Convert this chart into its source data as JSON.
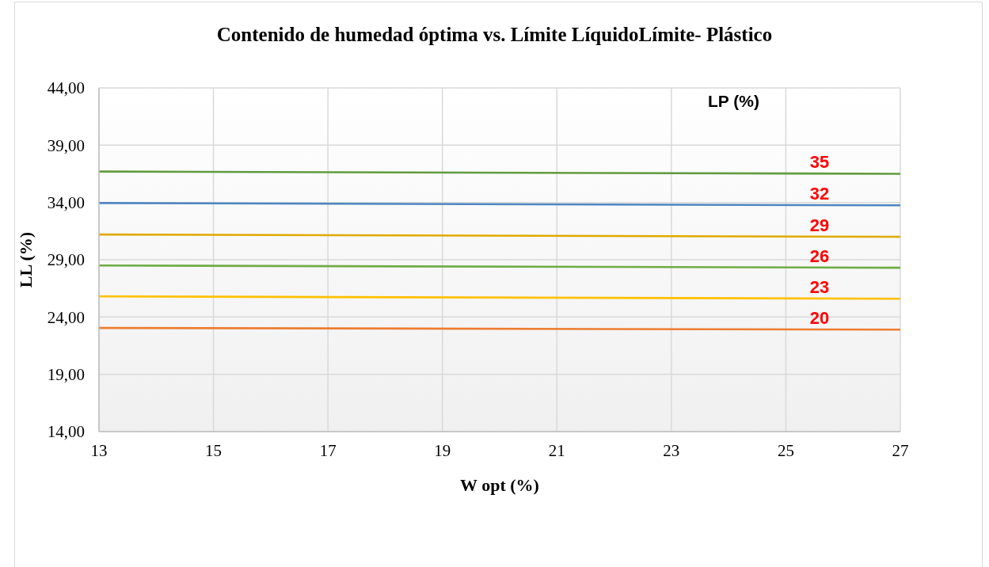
{
  "chart_data": {
    "type": "line",
    "title": "Contenido de humedad óptima vs. Límite LíquidoLímite- Plástico",
    "xlabel": "W opt (%)",
    "ylabel": "LL (%)",
    "legend_title": "LP (%)",
    "x": [
      13,
      27
    ],
    "series": [
      {
        "name": "35",
        "color": "#629b3f",
        "values": [
          36.7,
          36.5
        ]
      },
      {
        "name": "32",
        "color": "#4f86c0",
        "values": [
          33.95,
          33.75
        ]
      },
      {
        "name": "29",
        "color": "#e0aa00",
        "values": [
          31.2,
          31.0
        ]
      },
      {
        "name": "26",
        "color": "#6fac46",
        "values": [
          28.5,
          28.3
        ]
      },
      {
        "name": "23",
        "color": "#ffc000",
        "values": [
          25.8,
          25.6
        ]
      },
      {
        "name": "20",
        "color": "#ed7d31",
        "values": [
          23.05,
          22.9
        ]
      }
    ],
    "xlim": [
      13,
      27
    ],
    "xticks": [
      13,
      15,
      17,
      19,
      21,
      23,
      25,
      27
    ],
    "ylim": [
      14,
      44
    ],
    "yticks": [
      {
        "value": 14,
        "label": "14,00"
      },
      {
        "value": 19,
        "label": "19,00"
      },
      {
        "value": 24,
        "label": "24,00"
      },
      {
        "value": 29,
        "label": "29,00"
      },
      {
        "value": 34,
        "label": "34,00"
      },
      {
        "value": 39,
        "label": "39,00"
      },
      {
        "value": 44,
        "label": "44,00"
      }
    ],
    "grid": true
  }
}
